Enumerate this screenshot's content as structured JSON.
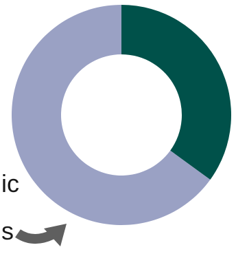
{
  "chart_data": {
    "type": "pie",
    "variant": "donut",
    "slices": [
      {
        "value": 35,
        "color": "#00514a"
      },
      {
        "value": 65,
        "color": "#9aa1c4"
      }
    ],
    "start_angle_deg": 0,
    "direction": "clockwise",
    "legend": "none",
    "annotations": [
      {
        "text": "ic",
        "truncated": true
      },
      {
        "text": "s",
        "truncated": true
      }
    ],
    "arrow_color": "#5f5f5f"
  }
}
